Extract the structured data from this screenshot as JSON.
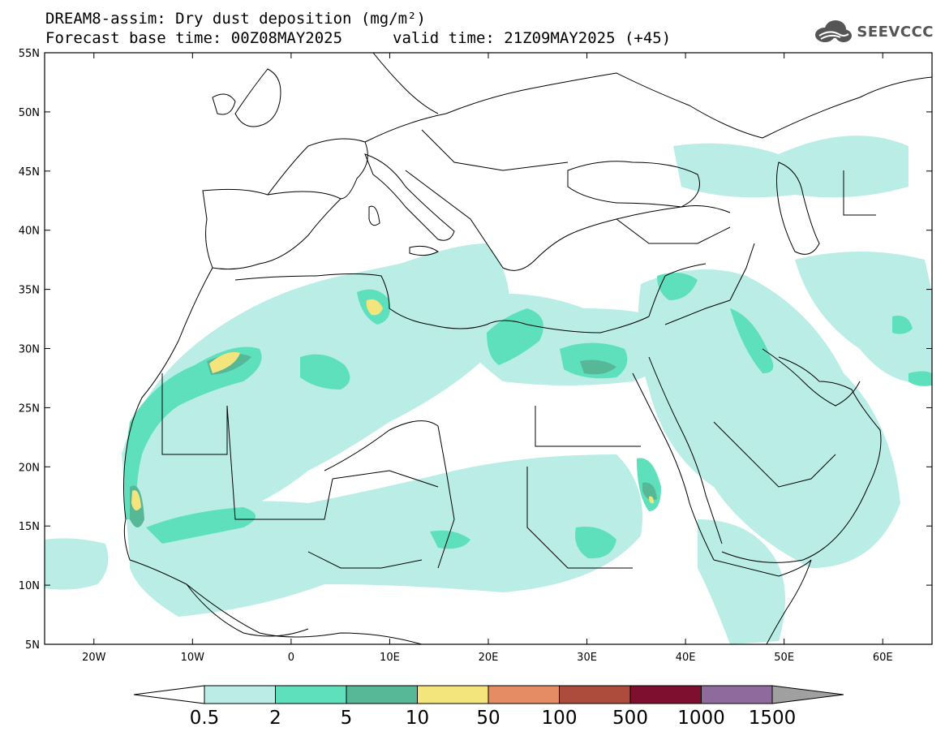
{
  "title_line1": "DREAM8-assim: Dry dust deposition (mg/m²)",
  "title_line2_left": "Forecast base time: 00Z08MAY2025",
  "title_line2_right": "valid time: 21Z09MAY2025 (+45)",
  "logo_text": "SEEVCCC",
  "logo_icon": "cloud-icon",
  "map": {
    "lon_range": [
      -25,
      65
    ],
    "lat_range": [
      5,
      55
    ],
    "lat_ticks": [
      {
        "value": 55,
        "label": "55N"
      },
      {
        "value": 50,
        "label": "50N"
      },
      {
        "value": 45,
        "label": "45N"
      },
      {
        "value": 40,
        "label": "40N"
      },
      {
        "value": 35,
        "label": "35N"
      },
      {
        "value": 30,
        "label": "30N"
      },
      {
        "value": 25,
        "label": "25N"
      },
      {
        "value": 20,
        "label": "20N"
      },
      {
        "value": 15,
        "label": "15N"
      },
      {
        "value": 10,
        "label": "10N"
      },
      {
        "value": 5,
        "label": "5N"
      }
    ],
    "lon_ticks": [
      {
        "value": -20,
        "label": "20W"
      },
      {
        "value": -10,
        "label": "10W"
      },
      {
        "value": 0,
        "label": "0"
      },
      {
        "value": 10,
        "label": "10E"
      },
      {
        "value": 20,
        "label": "20E"
      },
      {
        "value": 30,
        "label": "30E"
      },
      {
        "value": 40,
        "label": "40E"
      },
      {
        "value": 50,
        "label": "50E"
      },
      {
        "value": 60,
        "label": "60E"
      }
    ]
  },
  "colorbar": {
    "labels": [
      "0.5",
      "2",
      "5",
      "10",
      "50",
      "100",
      "500",
      "1000",
      "1500"
    ],
    "colors": [
      "#b9ede6",
      "#5ee0bc",
      "#56b896",
      "#f3e57c",
      "#e58c64",
      "#ad4c3c",
      "#7e0f2e",
      "#8e6b9c"
    ],
    "low_extend_color": "#ffffff",
    "high_extend_color": "#a0a0a0"
  }
}
